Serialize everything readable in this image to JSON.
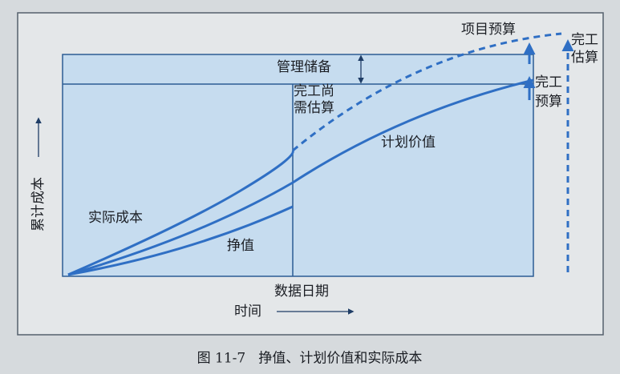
{
  "diagram": {
    "labels": {
      "project_budget": "项目预算",
      "eac": [
        "完工",
        "估算"
      ],
      "management_reserve": "管理储备",
      "bac": [
        "完工",
        "预算"
      ],
      "etc": [
        "完工尚",
        "需估算"
      ],
      "planned_value": "计划价值",
      "actual_cost": "实际成本",
      "earned_value": "挣值",
      "y_axis": "累计成本",
      "data_date": "数据日期",
      "x_axis": "时间"
    },
    "caption": "图 11-7   挣值、计划价值和实际成本"
  }
}
